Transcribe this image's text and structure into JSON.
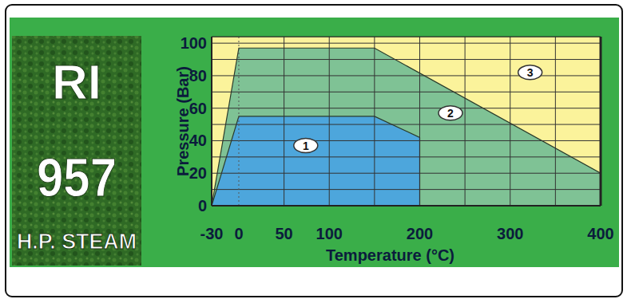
{
  "chart_data": {
    "type": "area",
    "title": [
      "RI",
      "957",
      "H.P. STEAM"
    ],
    "x_label": "Temperature (°C)",
    "y_label": "Pressure (Bar)",
    "xlim": [
      -30,
      400
    ],
    "ylim": [
      0,
      104
    ],
    "xticks": [
      -30,
      0,
      50,
      100,
      200,
      300,
      400
    ],
    "yticks": [
      0,
      20,
      40,
      60,
      80,
      100
    ],
    "grid": true,
    "series": [
      {
        "name": "3",
        "color": "#fbf39b",
        "x": [
          -30,
          400,
          400,
          -30
        ],
        "values": [
          0,
          0,
          104,
          104
        ],
        "label": {
          "x": 322,
          "y": 82
        }
      },
      {
        "name": "2",
        "color": "#7fc295",
        "x": [
          -30,
          0,
          150,
          400,
          400
        ],
        "values": [
          0,
          97,
          97,
          20,
          0
        ],
        "label": {
          "x": 234,
          "y": 57
        }
      },
      {
        "name": "1",
        "color": "#4da6dc",
        "x": [
          -30,
          0,
          150,
          200,
          200
        ],
        "values": [
          0,
          55,
          55,
          42,
          0
        ],
        "label": {
          "x": 74,
          "y": 37
        }
      }
    ]
  }
}
